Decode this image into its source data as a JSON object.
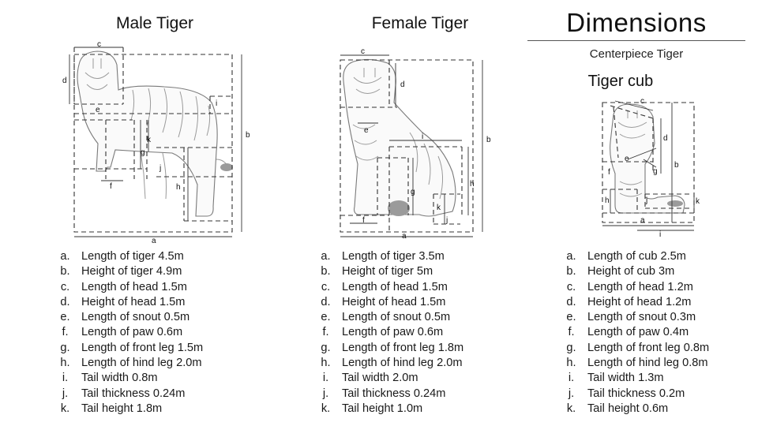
{
  "titles": {
    "male": "Male Tiger",
    "female": "Female Tiger",
    "dimensions": "Dimensions",
    "centerpiece": "Centerpiece Tiger",
    "cub": "Tiger cub"
  },
  "diagram_labels": {
    "a": "a",
    "b": "b",
    "c": "c",
    "d": "d",
    "e": "e",
    "f": "f",
    "g": "g",
    "h": "h",
    "i": "i",
    "j": "j",
    "k": "k"
  },
  "male_list": [
    {
      "letter": "a.",
      "text": "Length of tiger 4.5m"
    },
    {
      "letter": "b.",
      "text": "Height of tiger 4.9m"
    },
    {
      "letter": "c.",
      "text": "Length of head 1.5m"
    },
    {
      "letter": "d.",
      "text": "Height of head 1.5m"
    },
    {
      "letter": "e.",
      "text": "Length of snout 0.5m"
    },
    {
      "letter": "f.",
      "text": "Length of paw 0.6m"
    },
    {
      "letter": "g.",
      "text": "Length of front leg 1.5m"
    },
    {
      "letter": "h.",
      "text": "Length of hind leg 2.0m"
    },
    {
      "letter": "i.",
      "text": "Tail width 0.8m"
    },
    {
      "letter": "j.",
      "text": "Tail thickness 0.24m"
    },
    {
      "letter": "k.",
      "text": "Tail height 1.8m"
    }
  ],
  "female_list": [
    {
      "letter": "a.",
      "text": "Length of tiger 3.5m"
    },
    {
      "letter": "b.",
      "text": "Height of tiger 5m"
    },
    {
      "letter": "c.",
      "text": "Length of head 1.5m"
    },
    {
      "letter": "d.",
      "text": "Height of head 1.5m"
    },
    {
      "letter": "e.",
      "text": "Length of snout 0.5m"
    },
    {
      "letter": "f.",
      "text": "Length of paw 0.6m"
    },
    {
      "letter": "g.",
      "text": "Length of front leg 1.8m"
    },
    {
      "letter": "h.",
      "text": "Length of hind leg 2.0m"
    },
    {
      "letter": "i.",
      "text": "Tail width 2.0m"
    },
    {
      "letter": "j.",
      "text": "Tail thickness 0.24m"
    },
    {
      "letter": "k.",
      "text": "Tail height 1.0m"
    }
  ],
  "cub_list": [
    {
      "letter": "a.",
      "text": "Length of cub 2.5m"
    },
    {
      "letter": "b.",
      "text": "Height of cub 3m"
    },
    {
      "letter": "c.",
      "text": "Length of head 1.2m"
    },
    {
      "letter": "d.",
      "text": "Height of head 1.2m"
    },
    {
      "letter": "e.",
      "text": "Length of snout 0.3m"
    },
    {
      "letter": "f.",
      "text": "Length of paw 0.4m"
    },
    {
      "letter": "g.",
      "text": "Length of front leg 0.8m"
    },
    {
      "letter": "h.",
      "text": "Length of hind leg 0.8m"
    },
    {
      "letter": "i.",
      "text": "Tail width 1.3m"
    },
    {
      "letter": "j.",
      "text": "Tail thickness 0.2m"
    },
    {
      "letter": "k.",
      "text": "Tail height 0.6m"
    }
  ]
}
